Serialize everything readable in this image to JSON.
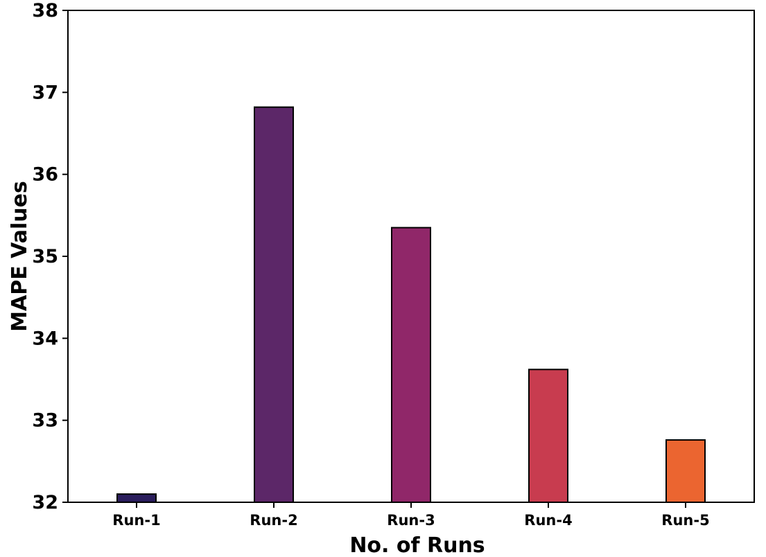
{
  "chart_data": {
    "type": "bar",
    "title": "",
    "xlabel": "No. of Runs",
    "ylabel": "MAPE Values",
    "categories": [
      "Run-1",
      "Run-2",
      "Run-3",
      "Run-4",
      "Run-5"
    ],
    "values": [
      32.1,
      36.82,
      35.35,
      33.62,
      32.76
    ],
    "colors": [
      "#2a1d5c",
      "#5c2768",
      "#902769",
      "#c83c4f",
      "#eb6530"
    ],
    "ylim": [
      32,
      38
    ],
    "yticks": [
      "32",
      "33",
      "34",
      "35",
      "36",
      "37",
      "38"
    ],
    "grid": false,
    "legend": "none"
  }
}
